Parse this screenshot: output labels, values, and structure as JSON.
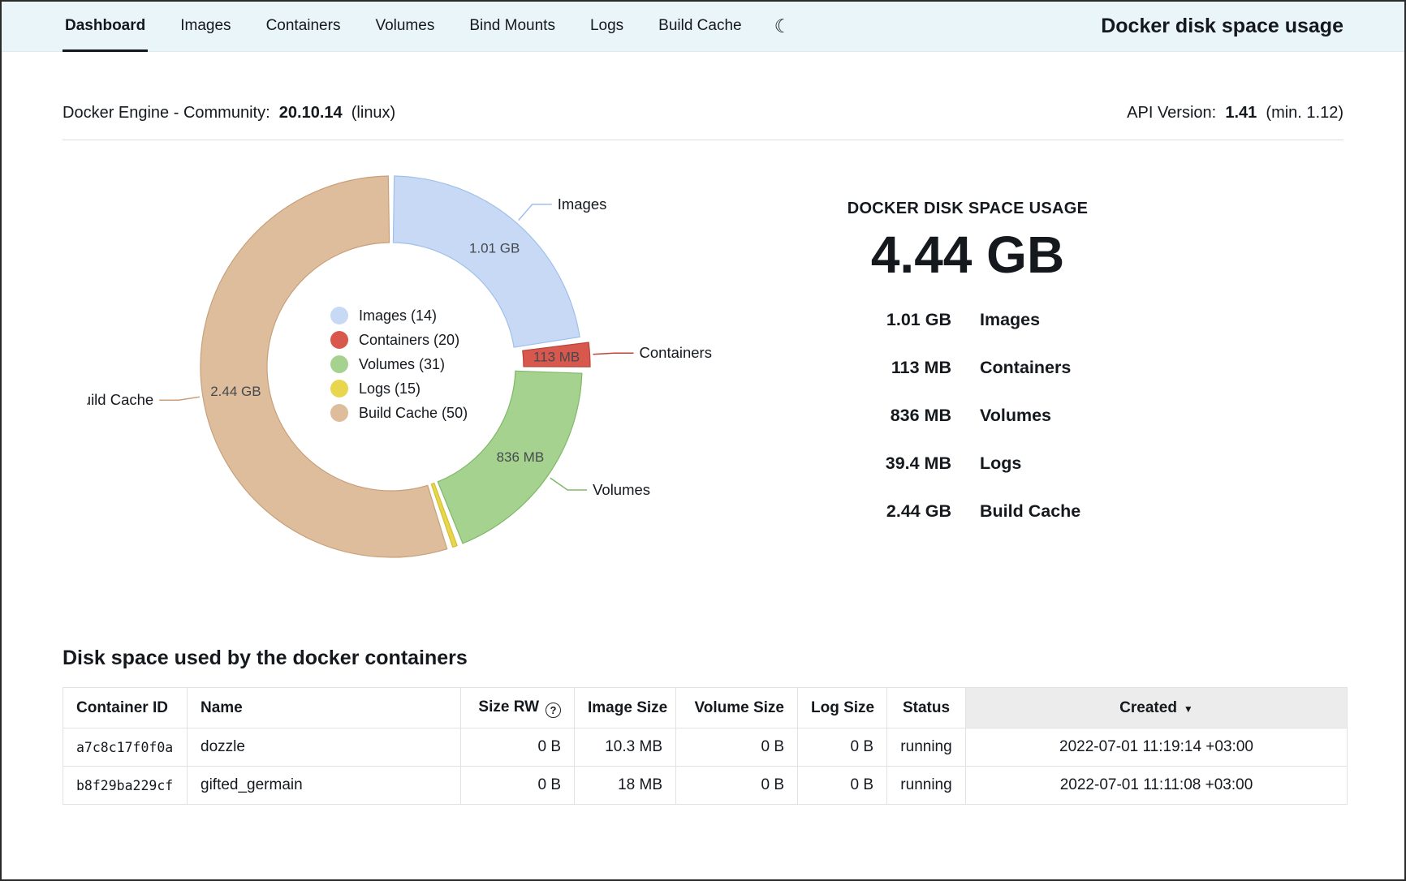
{
  "nav": {
    "tabs": [
      "Dashboard",
      "Images",
      "Containers",
      "Volumes",
      "Bind Mounts",
      "Logs",
      "Build Cache"
    ],
    "active_tab": "Dashboard",
    "moon_glyph": "☾",
    "title": "Docker disk space usage"
  },
  "engine": {
    "label": "Docker Engine - Community:",
    "version": "20.10.14",
    "platform": "(linux)",
    "api_label": "API Version:",
    "api_version": "1.41",
    "api_min": "(min. 1.12)"
  },
  "chart_data": {
    "type": "pie",
    "title": "DOCKER DISK SPACE USAGE",
    "total_label": "4.44 GB",
    "legend_position": "center",
    "segments": [
      {
        "name": "Images",
        "count": 14,
        "value_mb": 1010,
        "size_label": "1.01 GB",
        "fill": "#c7d9f4",
        "stroke": "#9fc0ea",
        "inner_label": true,
        "callout": true,
        "explode": 0
      },
      {
        "name": "Containers",
        "count": 20,
        "value_mb": 113,
        "size_label": "113 MB",
        "fill": "#d9584e",
        "stroke": "#b94339",
        "inner_label": true,
        "callout": true,
        "explode": 10
      },
      {
        "name": "Volumes",
        "count": 31,
        "value_mb": 836,
        "size_label": "836 MB",
        "fill": "#a6d290",
        "stroke": "#7fb968",
        "inner_label": true,
        "callout": true,
        "explode": 0
      },
      {
        "name": "Logs",
        "count": 15,
        "value_mb": 39.4,
        "size_label": "39.4 MB",
        "fill": "#e8d64e",
        "stroke": "#d4bf2e",
        "inner_label": false,
        "callout": false,
        "explode": 0
      },
      {
        "name": "Build Cache",
        "count": 50,
        "value_mb": 2440,
        "size_label": "2.44 GB",
        "fill": "#ddbd9c",
        "stroke": "#c9a07a",
        "inner_label": true,
        "callout": true,
        "explode": 0
      }
    ]
  },
  "summary": {
    "title": "DOCKER DISK SPACE USAGE",
    "total": "4.44 GB",
    "rows": [
      {
        "size": "1.01 GB",
        "label": "Images"
      },
      {
        "size": "113 MB",
        "label": "Containers"
      },
      {
        "size": "836 MB",
        "label": "Volumes"
      },
      {
        "size": "39.4 MB",
        "label": "Logs"
      },
      {
        "size": "2.44 GB",
        "label": "Build Cache"
      }
    ]
  },
  "table": {
    "section_title": "Disk space used by the docker containers",
    "help_glyph": "?",
    "sort_glyph": "▼",
    "columns": [
      {
        "key": "id",
        "label": "Container ID"
      },
      {
        "key": "name",
        "label": "Name"
      },
      {
        "key": "size_rw",
        "label": "Size RW"
      },
      {
        "key": "image_size",
        "label": "Image Size"
      },
      {
        "key": "volume_size",
        "label": "Volume Size"
      },
      {
        "key": "log_size",
        "label": "Log Size"
      },
      {
        "key": "status",
        "label": "Status"
      },
      {
        "key": "created",
        "label": "Created"
      }
    ],
    "rows": [
      {
        "id": "a7c8c17f0f0a",
        "name": "dozzle",
        "size_rw": "0 B",
        "image_size": "10.3 MB",
        "volume_size": "0 B",
        "log_size": "0 B",
        "status": "running",
        "created": "2022-07-01  11:19:14 +03:00"
      },
      {
        "id": "b8f29ba229cf",
        "name": "gifted_germain",
        "size_rw": "0 B",
        "image_size": "18 MB",
        "volume_size": "0 B",
        "log_size": "0 B",
        "status": "running",
        "created": "2022-07-01  11:11:08 +03:00"
      }
    ]
  }
}
